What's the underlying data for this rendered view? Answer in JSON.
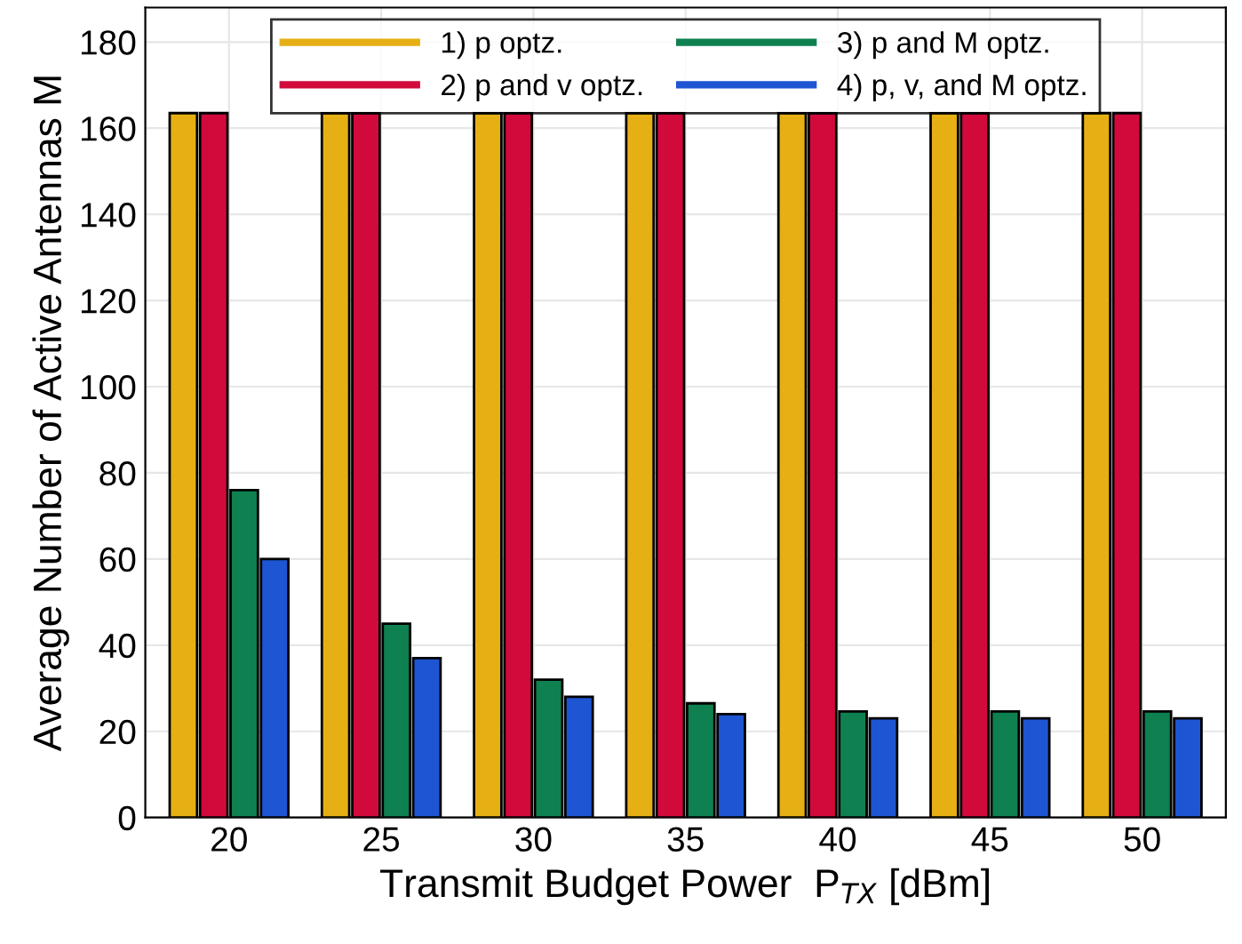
{
  "chart_data": {
    "type": "bar",
    "xlabel": "Transmit Budget Power  P$_{TX}$ [dBm]",
    "ylabel": "Average Number of Active Antennas M",
    "categories": [
      "20",
      "25",
      "30",
      "35",
      "40",
      "45",
      "50"
    ],
    "series": [
      {
        "name": "1) p optz.",
        "color": "#e6b015",
        "values": [
          163.5,
          163.5,
          163.5,
          163.5,
          163.5,
          163.5,
          163.5
        ]
      },
      {
        "name": "2) p and v optz.",
        "color": "#d20a3c",
        "values": [
          163.5,
          163.5,
          163.5,
          163.5,
          163.5,
          163.5,
          163.5
        ]
      },
      {
        "name": "3) p and M optz.",
        "color": "#0f8050",
        "values": [
          76,
          45,
          32,
          26.5,
          24.6,
          24.6,
          24.6
        ]
      },
      {
        "name": "4) p, v, and M optz.",
        "color": "#1e55d2",
        "values": [
          60,
          37,
          28,
          24,
          23,
          23,
          23
        ]
      }
    ],
    "ylim": [
      0,
      188
    ],
    "yticks": [
      0,
      20,
      40,
      60,
      80,
      100,
      120,
      140,
      160,
      180
    ],
    "grid": true,
    "legend": "top"
  }
}
